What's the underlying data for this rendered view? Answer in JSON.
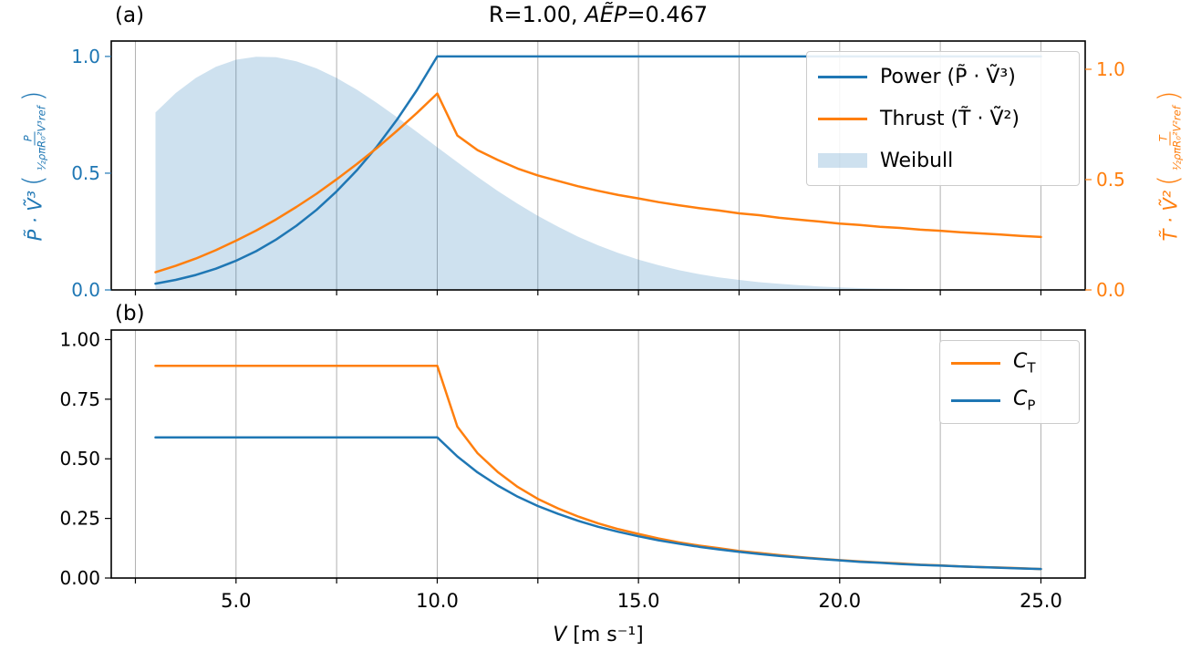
{
  "figure": {
    "title": {
      "prefix": "R=1.00, ",
      "math": "AẼP",
      "suffix": "=0.467"
    },
    "bg": "#ffffff"
  },
  "colors": {
    "blue": "#1f77b4",
    "orange": "#ff7f0e",
    "grid": "#b0b0b0",
    "spine": "#000000",
    "weibull_fill": "rgba(31,119,180,0.22)"
  },
  "panel_a": {
    "tag": "(a)",
    "ylabel_left": {
      "main": "P̃ · Ṽ³",
      "paren_open": "(",
      "frac_num": "P",
      "frac_den": "½ρπR₀²V³ref",
      "paren_close": ")"
    },
    "ylabel_right": {
      "main": "T̃ · Ṽ²",
      "paren_open": "(",
      "frac_num": "T",
      "frac_den": "½ρπR₀²V²ref",
      "paren_close": ")"
    }
  },
  "panel_b": {
    "tag": "(b)",
    "xlabel_main": "V",
    "xlabel_unit": " [m s⁻¹]"
  },
  "chart_data": [
    {
      "id": "a",
      "type": "line",
      "title": "R=1.00, AẼP=0.467",
      "xlim": [
        1.9,
        26.1
      ],
      "ylim_left": [
        0,
        1.066
      ],
      "ylim_right": [
        0,
        1.128
      ],
      "axis_left_color": "#1f77b4",
      "axis_right_color": "#ff7f0e",
      "xgrid": [
        2.5,
        5,
        7.5,
        10,
        12.5,
        15,
        17.5,
        20,
        22.5,
        25
      ],
      "yticks_left": [
        0.0,
        0.5,
        1.0
      ],
      "ytick_labels_left": [
        "0.0",
        "0.5",
        "1.0"
      ],
      "yticks_right": [
        0.0,
        0.5,
        1.0
      ],
      "ytick_labels_right": [
        "0.0",
        "0.5",
        "1.0"
      ],
      "grid": true,
      "legend_loc": "upper right",
      "x": [
        3,
        3.5,
        4,
        4.5,
        5,
        5.5,
        6,
        6.5,
        7,
        7.5,
        8,
        8.5,
        9,
        9.5,
        10,
        10.5,
        11,
        11.5,
        12,
        12.5,
        13,
        13.5,
        14,
        14.5,
        15,
        15.5,
        16,
        16.5,
        17,
        17.5,
        18,
        18.5,
        19,
        19.5,
        20,
        20.5,
        21,
        21.5,
        22,
        22.5,
        23,
        23.5,
        24,
        24.5,
        25
      ],
      "series": [
        {
          "id": "power",
          "name": "Power (P̃ · Ṽ³)",
          "style": "line",
          "axis": "left",
          "color": "#1f77b4",
          "values": [
            0.027,
            0.043,
            0.064,
            0.091,
            0.125,
            0.166,
            0.216,
            0.275,
            0.343,
            0.422,
            0.512,
            0.614,
            0.729,
            0.857,
            1.0,
            1.0,
            1.0,
            1.0,
            1.0,
            1.0,
            1.0,
            1.0,
            1.0,
            1.0,
            1.0,
            1.0,
            1.0,
            1.0,
            1.0,
            1.0,
            1.0,
            1.0,
            1.0,
            1.0,
            1.0,
            1.0,
            1.0,
            1.0,
            1.0,
            1.0,
            1.0,
            1.0,
            1.0,
            1.0,
            1.0
          ]
        },
        {
          "id": "thrust",
          "name": "Thrust (T̃ · Ṽ²)",
          "style": "line",
          "axis": "right",
          "color": "#ff7f0e",
          "values": [
            0.08,
            0.109,
            0.142,
            0.18,
            0.223,
            0.269,
            0.32,
            0.376,
            0.436,
            0.501,
            0.57,
            0.643,
            0.721,
            0.803,
            0.89,
            0.7,
            0.634,
            0.589,
            0.55,
            0.519,
            0.494,
            0.47,
            0.449,
            0.43,
            0.415,
            0.398,
            0.384,
            0.371,
            0.36,
            0.347,
            0.339,
            0.327,
            0.318,
            0.31,
            0.301,
            0.294,
            0.286,
            0.281,
            0.273,
            0.268,
            0.261,
            0.256,
            0.251,
            0.245,
            0.24
          ]
        },
        {
          "id": "weibull",
          "name": "Weibull",
          "style": "area",
          "axis": "left",
          "color": "#1f77b4",
          "fill": "rgba(31,119,180,0.22)",
          "values": [
            0.76,
            0.843,
            0.908,
            0.956,
            0.986,
            0.999,
            0.997,
            0.979,
            0.949,
            0.908,
            0.858,
            0.801,
            0.74,
            0.676,
            0.611,
            0.547,
            0.484,
            0.424,
            0.369,
            0.317,
            0.271,
            0.228,
            0.191,
            0.158,
            0.13,
            0.106,
            0.085,
            0.068,
            0.054,
            0.043,
            0.033,
            0.026,
            0.02,
            0.015,
            0.011,
            0.008,
            0.006,
            0.005,
            0.003,
            0.002,
            0.002,
            0.001,
            0.001,
            0.001,
            0.0
          ]
        }
      ]
    },
    {
      "id": "b",
      "type": "line",
      "xlim": [
        1.9,
        26.1
      ],
      "ylim": [
        0,
        1.04
      ],
      "xgrid": [
        2.5,
        5,
        7.5,
        10,
        12.5,
        15,
        17.5,
        20,
        22.5,
        25
      ],
      "xticks": [
        5,
        10,
        15,
        20,
        25
      ],
      "xtick_labels": [
        "5.0",
        "10.0",
        "15.0",
        "20.0",
        "25.0"
      ],
      "yticks": [
        0,
        0.25,
        0.5,
        0.75,
        1.0
      ],
      "ytick_labels": [
        "0.00",
        "0.25",
        "0.50",
        "0.75",
        "1.00"
      ],
      "xlabel": "V [m s⁻¹]",
      "grid": true,
      "legend_loc": "upper right",
      "x": [
        3,
        3.5,
        4,
        4.5,
        5,
        5.5,
        6,
        6.5,
        7,
        7.5,
        8,
        8.5,
        9,
        9.5,
        10,
        10.5,
        11,
        11.5,
        12,
        12.5,
        13,
        13.5,
        14,
        14.5,
        15,
        15.5,
        16,
        16.5,
        17,
        17.5,
        18,
        18.5,
        19,
        19.5,
        20,
        20.5,
        21,
        21.5,
        22,
        22.5,
        23,
        23.5,
        24,
        24.5,
        25
      ],
      "series": [
        {
          "id": "ct",
          "name": "C_T",
          "label_main": "C",
          "label_sub": "T",
          "style": "line",
          "color": "#ff7f0e",
          "values": [
            0.89,
            0.89,
            0.89,
            0.89,
            0.89,
            0.89,
            0.89,
            0.89,
            0.89,
            0.89,
            0.89,
            0.89,
            0.89,
            0.89,
            0.89,
            0.635,
            0.524,
            0.445,
            0.382,
            0.332,
            0.292,
            0.258,
            0.229,
            0.205,
            0.185,
            0.166,
            0.15,
            0.136,
            0.125,
            0.113,
            0.105,
            0.096,
            0.088,
            0.081,
            0.075,
            0.07,
            0.065,
            0.061,
            0.056,
            0.053,
            0.049,
            0.046,
            0.044,
            0.041,
            0.038
          ]
        },
        {
          "id": "cp",
          "name": "C_P",
          "label_main": "C",
          "label_sub": "P",
          "style": "line",
          "color": "#1f77b4",
          "values": [
            0.59,
            0.59,
            0.59,
            0.59,
            0.59,
            0.59,
            0.59,
            0.59,
            0.59,
            0.59,
            0.59,
            0.59,
            0.59,
            0.59,
            0.59,
            0.51,
            0.443,
            0.388,
            0.341,
            0.302,
            0.269,
            0.24,
            0.215,
            0.194,
            0.175,
            0.158,
            0.144,
            0.131,
            0.12,
            0.11,
            0.101,
            0.093,
            0.086,
            0.08,
            0.074,
            0.068,
            0.064,
            0.059,
            0.055,
            0.052,
            0.049,
            0.046,
            0.043,
            0.04,
            0.038
          ]
        }
      ]
    }
  ]
}
